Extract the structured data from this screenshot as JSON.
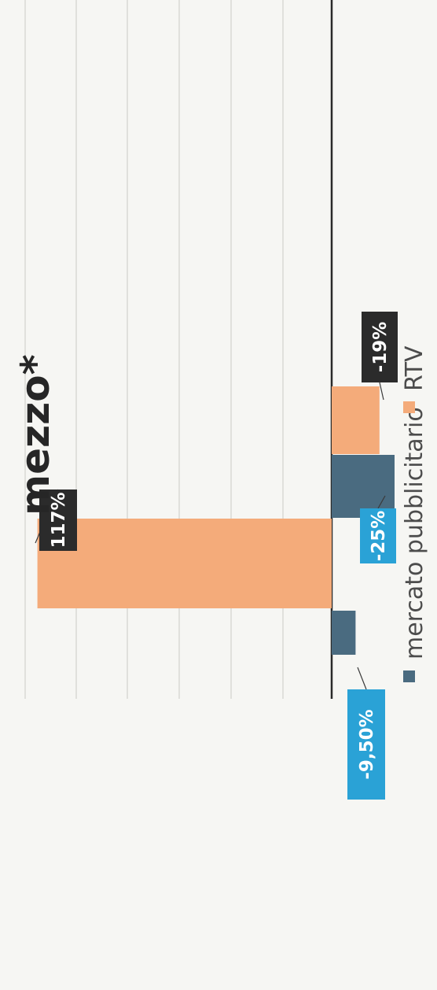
{
  "chart_data": {
    "type": "bar",
    "title": "mezzo*",
    "categories": [
      "mercato pubblicitario",
      "RTV"
    ],
    "groups": [
      {
        "mercato pubblicitario": -9.5,
        "RTV": 117
      },
      {
        "mercato pubblicitario": -25,
        "RTV": -19
      }
    ],
    "series": [
      {
        "name": "mercato pubblicitario",
        "color": "#4a6b80",
        "values": [
          -9.5,
          -25
        ],
        "labels": [
          "-9,50%",
          "-25%"
        ]
      },
      {
        "name": "RTV",
        "color": "#f4ab7a",
        "values": [
          117,
          -19
        ],
        "labels": [
          "117%",
          "-19%"
        ]
      }
    ],
    "label_colors": {
      "mercato pubblicitario": "#2aa2d6",
      "RTV": "#2b2b2b"
    },
    "orientation": "rotated 90 degrees clockwise",
    "grid": true,
    "legend_position": "bottom"
  }
}
